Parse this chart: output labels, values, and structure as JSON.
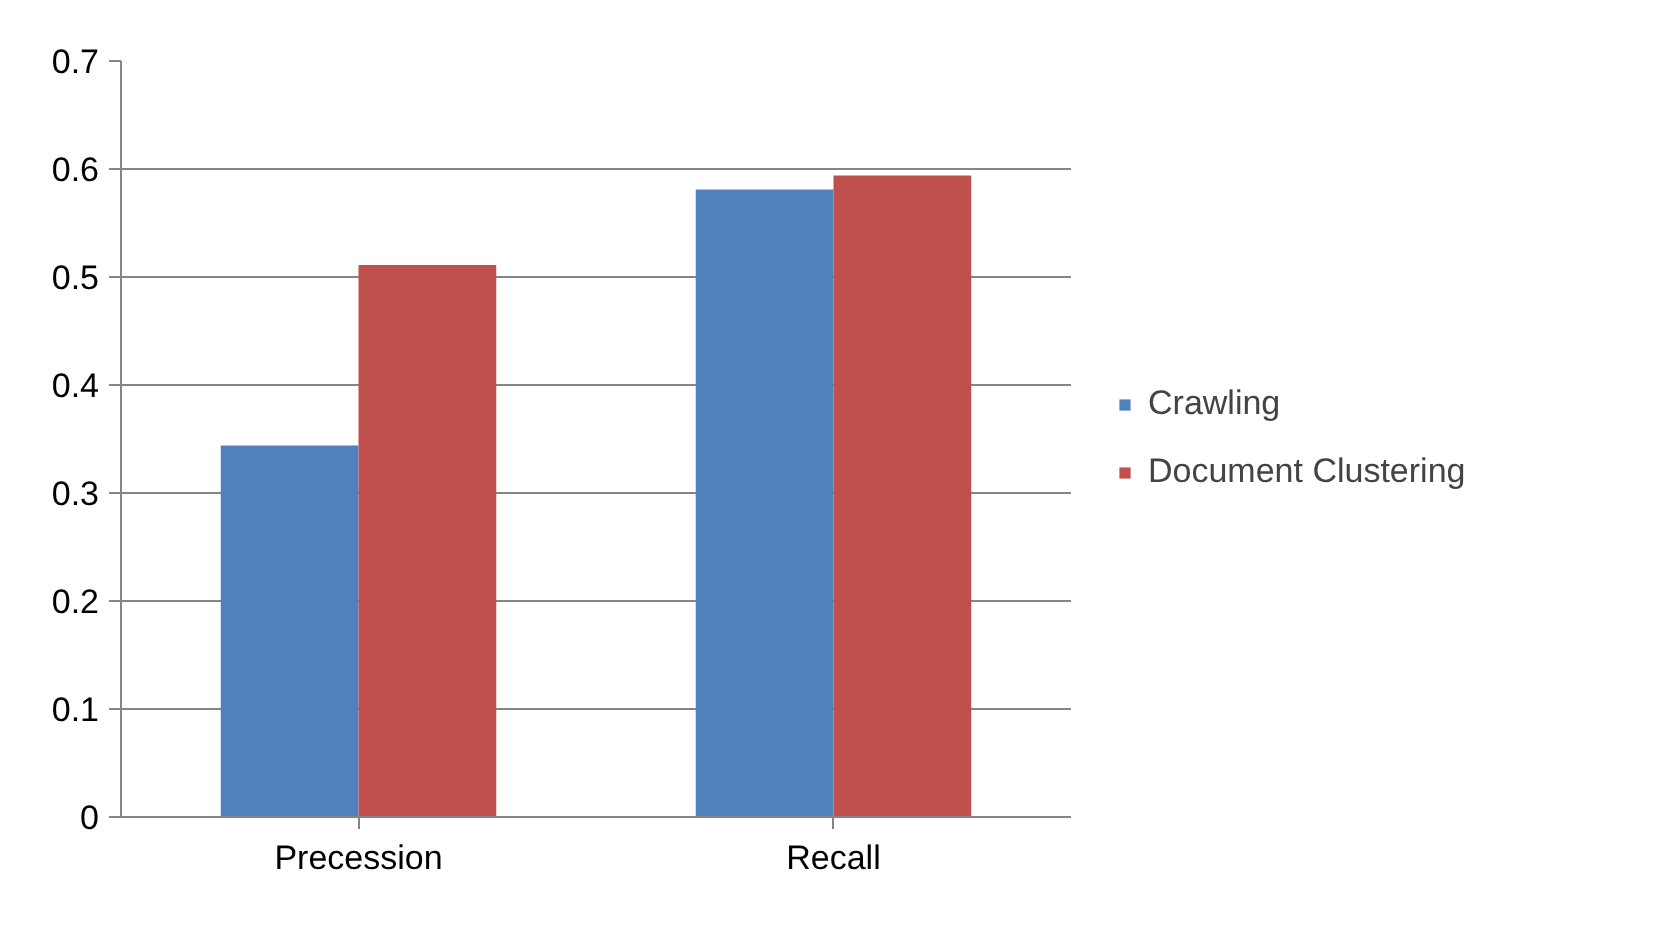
{
  "chart_data": {
    "type": "bar",
    "categories": [
      "Precession",
      "Recall"
    ],
    "series": [
      {
        "name": "Crawling",
        "color": "#4f81bd",
        "values": [
          0.344,
          0.581
        ]
      },
      {
        "name": "Document Clustering",
        "color": "#c0504d",
        "values": [
          0.511,
          0.594
        ]
      }
    ],
    "ylim": [
      0,
      0.7
    ],
    "yticks": [
      0,
      0.1,
      0.2,
      0.3,
      0.4,
      0.5,
      0.6,
      0.7
    ],
    "grid": "y",
    "legend": "right"
  }
}
